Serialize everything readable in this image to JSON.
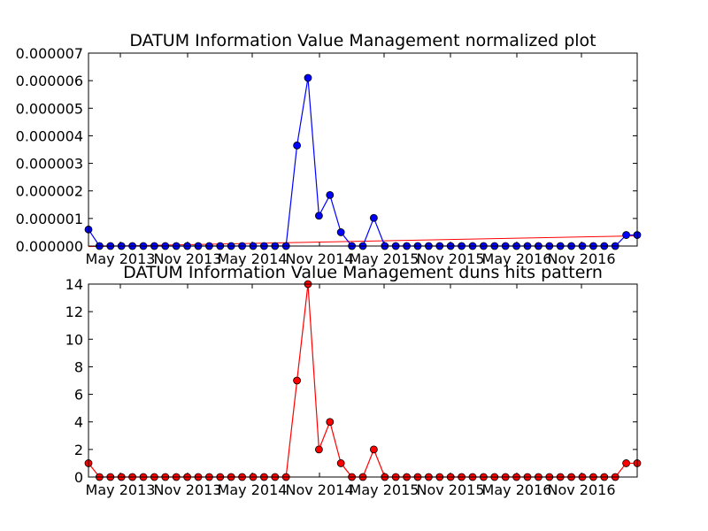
{
  "chart_data": [
    {
      "type": "line",
      "title": "DATUM Information Value Management normalized plot",
      "xlabel": "",
      "ylabel": "",
      "ylim": [
        0,
        7e-06
      ],
      "y_ticks": [
        "0.000000",
        "0.000001",
        "0.000002",
        "0.000003",
        "0.000004",
        "0.000005",
        "0.000006",
        "0.000007"
      ],
      "x_ticks": [
        "May 2013",
        "Nov 2013",
        "May 2014",
        "Nov 2014",
        "May 2015",
        "Nov 2015",
        "May 2016",
        "Nov 2016"
      ],
      "grid": false,
      "colors": {
        "series": "#0000ff",
        "trend": "#ff0000"
      },
      "series": [
        {
          "values": [
            6e-07,
            0,
            0,
            0,
            0,
            0,
            0,
            0,
            0,
            0,
            0,
            0,
            0,
            0,
            0,
            0,
            0,
            0,
            0,
            3.65e-06,
            6.1e-06,
            1.1e-06,
            1.85e-06,
            5e-07,
            0,
            0,
            1.02e-06,
            0,
            0,
            0,
            0,
            0,
            0,
            0,
            0,
            0,
            0,
            0,
            0,
            0,
            0,
            0,
            0,
            0,
            0,
            0,
            0,
            0,
            0,
            4e-07,
            4e-07
          ],
          "markers": true
        }
      ],
      "trend_line": {
        "start": -2e-08,
        "end": 3.7e-07
      }
    },
    {
      "type": "line",
      "title": "DATUM Information Value Management duns hits pattern",
      "xlabel": "",
      "ylabel": "",
      "ylim": [
        0,
        14
      ],
      "y_ticks": [
        "0",
        "2",
        "4",
        "6",
        "8",
        "10",
        "12",
        "14"
      ],
      "x_ticks": [
        "May 2013",
        "Nov 2013",
        "May 2014",
        "Nov 2014",
        "May 2015",
        "Nov 2015",
        "May 2016",
        "Nov 2016"
      ],
      "grid": false,
      "colors": {
        "series": "#ff0000"
      },
      "series": [
        {
          "values": [
            1,
            0,
            0,
            0,
            0,
            0,
            0,
            0,
            0,
            0,
            0,
            0,
            0,
            0,
            0,
            0,
            0,
            0,
            0,
            7,
            14,
            2,
            4,
            1,
            0,
            0,
            2,
            0,
            0,
            0,
            0,
            0,
            0,
            0,
            0,
            0,
            0,
            0,
            0,
            0,
            0,
            0,
            0,
            0,
            0,
            0,
            0,
            0,
            0,
            1,
            1
          ],
          "markers": true
        }
      ]
    }
  ]
}
